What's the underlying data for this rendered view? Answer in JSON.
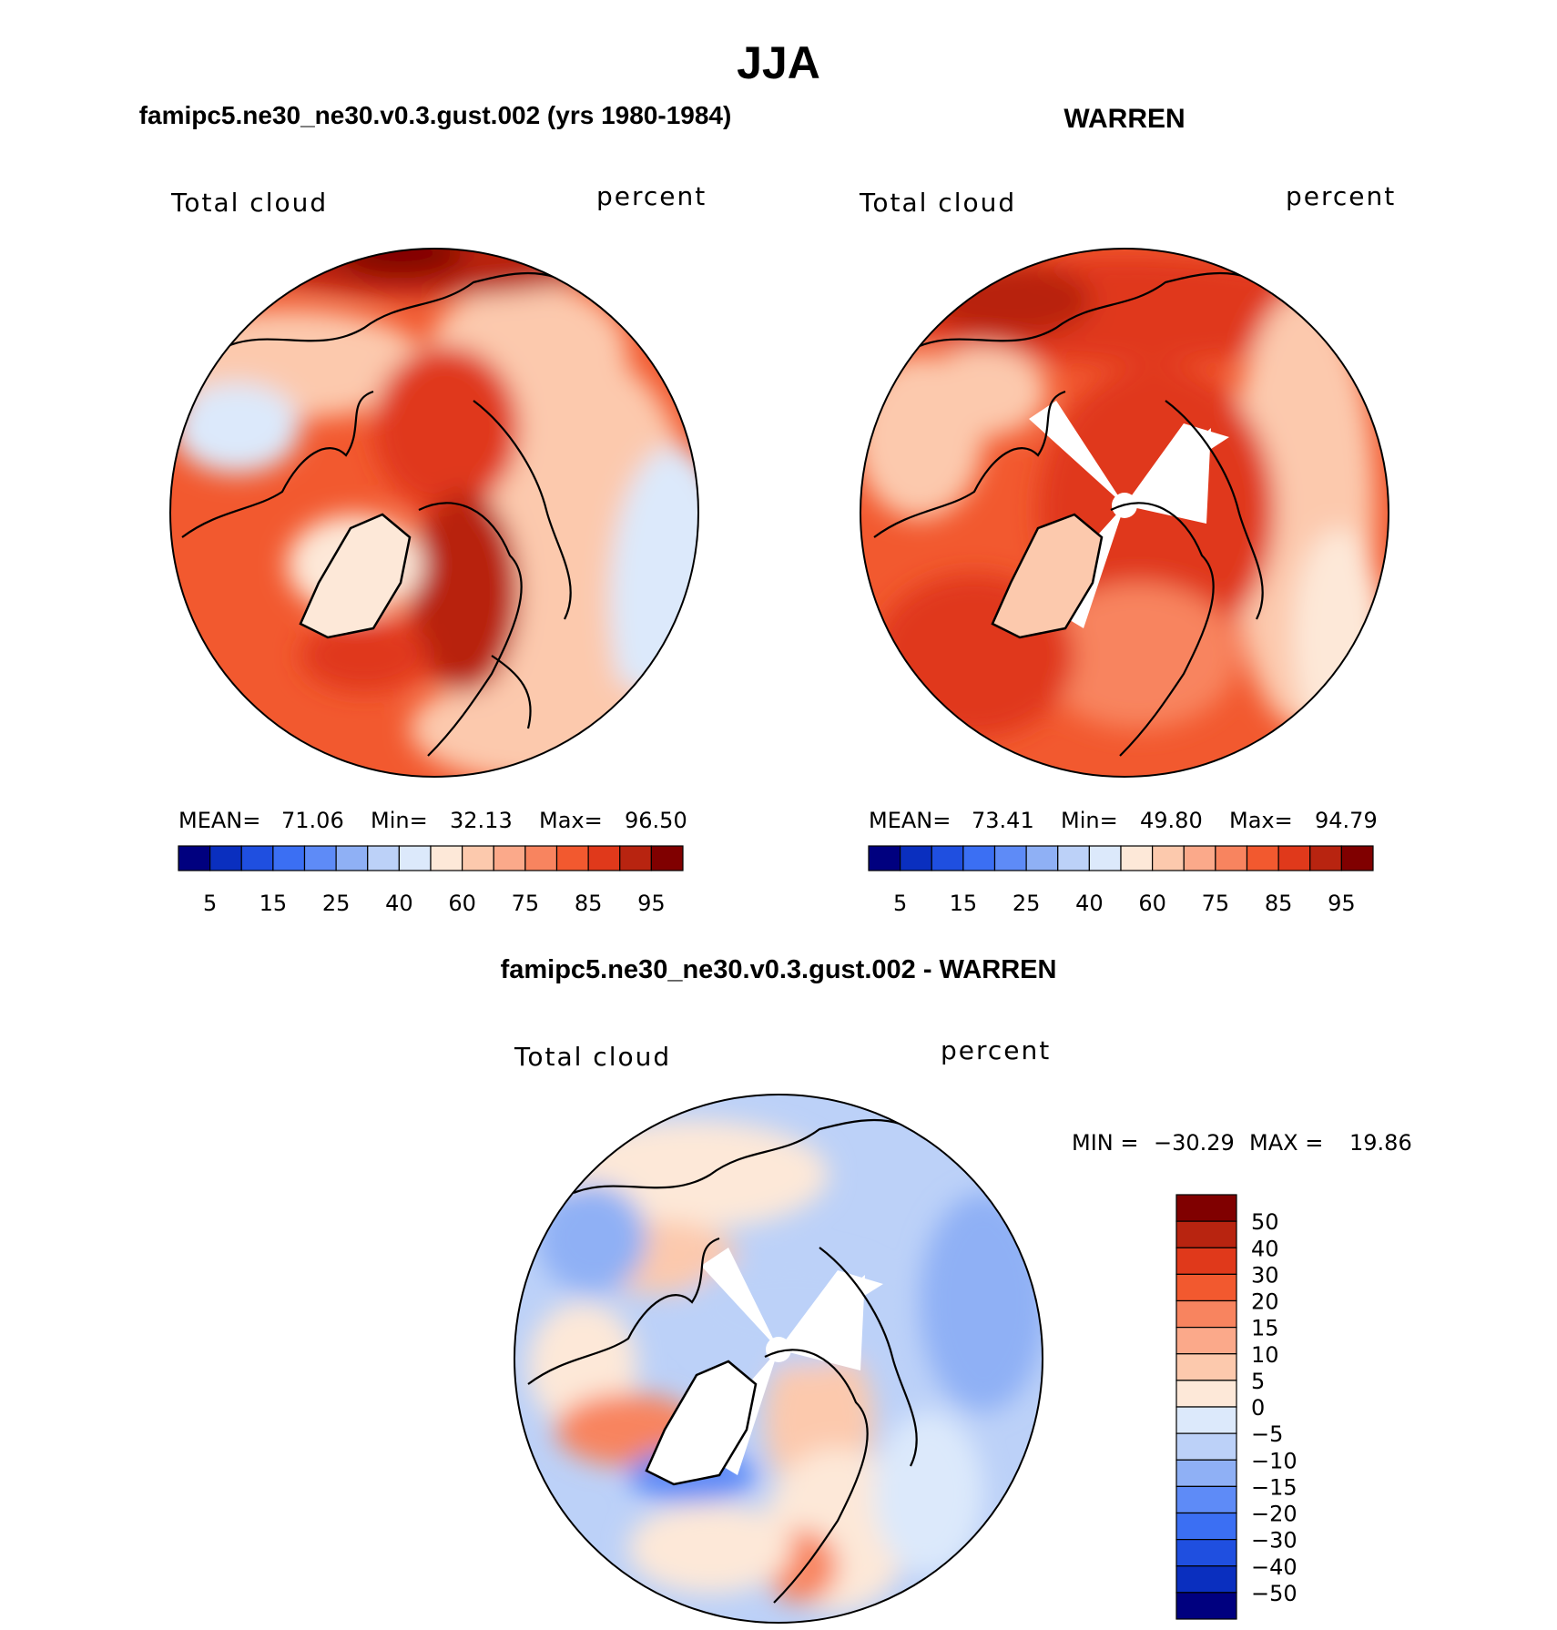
{
  "title": "JJA",
  "panels": [
    {
      "id": "model",
      "heading": "famipc5.ne30_ne30.v0.3.gust.002 (yrs 1980-1984)",
      "variable": "Total cloud",
      "units": "percent",
      "stats": {
        "mean_label": "MEAN=",
        "mean": "71.06",
        "min_label": "Min=",
        "min": "32.13",
        "max_label": "Max=",
        "max": "96.50"
      },
      "colorbar": {
        "colors": [
          "#00007f",
          "#0a2fbf",
          "#1f4fe0",
          "#3b6ff3",
          "#5e8bf7",
          "#8fb0f5",
          "#bcd1f8",
          "#dce9fb",
          "#fde8d8",
          "#fcc9ad",
          "#fba98a",
          "#f8845f",
          "#f2592f",
          "#e0391b",
          "#b82410",
          "#800000"
        ],
        "tick_labels": [
          "5",
          "15",
          "25",
          "40",
          "60",
          "75",
          "85",
          "95"
        ]
      },
      "map": {
        "base_color": "#f4693d",
        "blobs": [
          {
            "color": "#fcc9ad",
            "desc": "Pacific/Siberian coast"
          },
          {
            "color": "#dce9fb",
            "desc": "Atlantic edge"
          },
          {
            "color": "#c42d18",
            "desc": "Arctic ocean"
          },
          {
            "color": "#800000",
            "desc": "top maximum"
          }
        ]
      }
    },
    {
      "id": "obs",
      "heading": "WARREN",
      "variable": "Total cloud",
      "units": "percent",
      "stats": {
        "mean_label": "MEAN=",
        "mean": "73.41",
        "min_label": "Min=",
        "min": "49.80",
        "max_label": "Max=",
        "max": "94.79"
      },
      "colorbar": {
        "colors": [
          "#00007f",
          "#0a2fbf",
          "#1f4fe0",
          "#3b6ff3",
          "#5e8bf7",
          "#8fb0f5",
          "#bcd1f8",
          "#dce9fb",
          "#fde8d8",
          "#fcc9ad",
          "#fba98a",
          "#f8845f",
          "#f2592f",
          "#e0391b",
          "#b82410",
          "#800000"
        ],
        "tick_labels": [
          "5",
          "15",
          "25",
          "40",
          "60",
          "75",
          "85",
          "95"
        ]
      },
      "map": {
        "base_color": "#f8845f"
      }
    }
  ],
  "difference": {
    "heading": "famipc5.ne30_ne30.v0.3.gust.002 - WARREN",
    "variable": "Total cloud",
    "units": "percent",
    "stats": {
      "min_label": "MIN =",
      "min": "−30.29",
      "max_label": "MAX =",
      "max": "19.86"
    },
    "colorbar": {
      "colors": [
        "#800000",
        "#b82410",
        "#e0391b",
        "#f2592f",
        "#f8845f",
        "#fba98a",
        "#fcc9ad",
        "#fde8d8",
        "#dce9fb",
        "#bcd1f8",
        "#8fb0f5",
        "#5e8bf7",
        "#3b6ff3",
        "#1f4fe0",
        "#0a2fbf",
        "#00007f"
      ],
      "tick_labels": [
        "50",
        "40",
        "30",
        "20",
        "15",
        "10",
        "5",
        "0",
        "−5",
        "−10",
        "−15",
        "−20",
        "−30",
        "−40",
        "−50"
      ]
    },
    "map": {
      "base_color": "#bcd1f8"
    }
  },
  "chart_data": {
    "type": "heatmap",
    "title": "JJA",
    "projection": "north polar stereographic",
    "panels": [
      {
        "name": "famipc5.ne30_ne30.v0.3.gust.002 (yrs 1980-1984)",
        "variable": "Total cloud",
        "units": "percent",
        "mean": 71.06,
        "min": 32.13,
        "max": 96.5,
        "levels": [
          5,
          10,
          15,
          20,
          25,
          30,
          40,
          50,
          60,
          70,
          75,
          80,
          85,
          90,
          95
        ]
      },
      {
        "name": "WARREN",
        "variable": "Total cloud",
        "units": "percent",
        "mean": 73.41,
        "min": 49.8,
        "max": 94.79,
        "levels": [
          5,
          10,
          15,
          20,
          25,
          30,
          40,
          50,
          60,
          70,
          75,
          80,
          85,
          90,
          95
        ]
      },
      {
        "name": "famipc5.ne30_ne30.v0.3.gust.002 - WARREN",
        "variable": "Total cloud",
        "units": "percent",
        "min": -30.29,
        "max": 19.86,
        "levels": [
          -50,
          -40,
          -30,
          -20,
          -15,
          -10,
          -5,
          0,
          5,
          10,
          15,
          20,
          30,
          40,
          50
        ]
      }
    ]
  }
}
